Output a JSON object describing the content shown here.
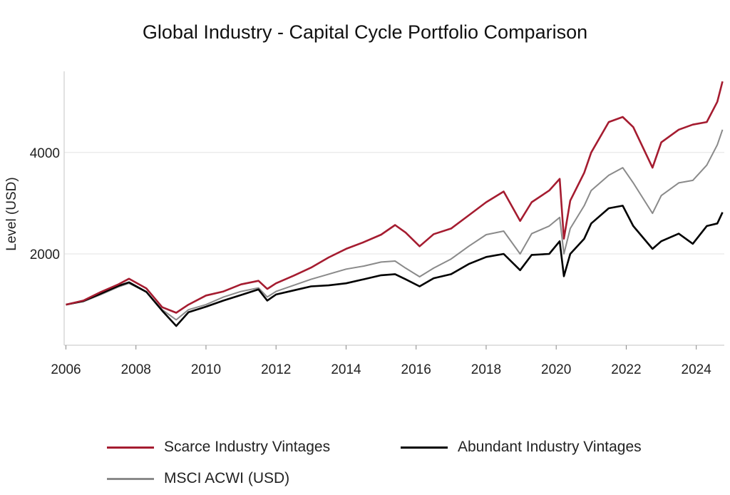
{
  "chart_data": {
    "type": "line",
    "title": "Global Industry - Capital Cycle Portfolio Comparison",
    "xlabel": "",
    "ylabel": "Level (USD)",
    "xlim": [
      2005.95,
      2024.8
    ],
    "ylim": [
      200,
      5600
    ],
    "x_ticks": [
      "2006",
      "2008",
      "2010",
      "2012",
      "2014",
      "2016",
      "2018",
      "2020",
      "2022",
      "2024"
    ],
    "y_ticks": [
      "2000",
      "4000"
    ],
    "grid": "horizontal",
    "legend_position": "bottom",
    "series": [
      {
        "name": "Scarce Industry Vintages",
        "color": "#a51c30",
        "x": [
          2006.0,
          2006.5,
          2007.0,
          2007.5,
          2007.8,
          2008.3,
          2008.75,
          2009.15,
          2009.5,
          2010.0,
          2010.5,
          2011.0,
          2011.5,
          2011.75,
          2012.0,
          2012.5,
          2013.0,
          2013.5,
          2014.0,
          2014.5,
          2015.0,
          2015.4,
          2015.7,
          2016.1,
          2016.5,
          2017.0,
          2017.5,
          2018.0,
          2018.5,
          2018.97,
          2019.3,
          2019.8,
          2020.1,
          2020.22,
          2020.4,
          2020.8,
          2021.0,
          2021.5,
          2021.9,
          2022.2,
          2022.75,
          2023.0,
          2023.5,
          2023.9,
          2024.3,
          2024.6,
          2024.75
        ],
        "y": [
          1000,
          1080,
          1250,
          1400,
          1510,
          1320,
          950,
          840,
          1000,
          1180,
          1260,
          1400,
          1470,
          1310,
          1420,
          1570,
          1730,
          1930,
          2100,
          2230,
          2380,
          2570,
          2420,
          2150,
          2390,
          2500,
          2760,
          3020,
          3230,
          2650,
          3020,
          3250,
          3480,
          2300,
          3050,
          3600,
          4000,
          4600,
          4700,
          4500,
          3700,
          4200,
          4450,
          4550,
          4600,
          5000,
          5400
        ]
      },
      {
        "name": "Abundant Industry Vintages",
        "color": "#000000",
        "x": [
          2006.0,
          2006.5,
          2007.0,
          2007.5,
          2007.8,
          2008.3,
          2008.75,
          2009.15,
          2009.5,
          2010.0,
          2010.5,
          2011.0,
          2011.5,
          2011.75,
          2012.0,
          2012.5,
          2013.0,
          2013.5,
          2014.0,
          2014.5,
          2015.0,
          2015.4,
          2015.7,
          2016.1,
          2016.5,
          2017.0,
          2017.5,
          2018.0,
          2018.5,
          2018.97,
          2019.3,
          2019.8,
          2020.1,
          2020.22,
          2020.4,
          2020.8,
          2021.0,
          2021.5,
          2021.9,
          2022.2,
          2022.75,
          2023.0,
          2023.5,
          2023.9,
          2024.3,
          2024.6,
          2024.75
        ],
        "y": [
          1000,
          1070,
          1220,
          1370,
          1440,
          1250,
          880,
          580,
          850,
          960,
          1080,
          1190,
          1300,
          1080,
          1200,
          1280,
          1360,
          1380,
          1420,
          1500,
          1580,
          1600,
          1500,
          1360,
          1520,
          1600,
          1800,
          1940,
          2000,
          1680,
          1980,
          2000,
          2250,
          1560,
          2000,
          2300,
          2600,
          2900,
          2950,
          2550,
          2100,
          2250,
          2400,
          2200,
          2550,
          2600,
          2820
        ]
      },
      {
        "name": "MSCI ACWI (USD)",
        "color": "#8a8a8a",
        "x": [
          2006.0,
          2006.5,
          2007.0,
          2007.5,
          2007.8,
          2008.3,
          2008.75,
          2009.15,
          2009.5,
          2010.0,
          2010.5,
          2011.0,
          2011.5,
          2011.75,
          2012.0,
          2012.5,
          2013.0,
          2013.5,
          2014.0,
          2014.5,
          2015.0,
          2015.4,
          2015.7,
          2016.1,
          2016.5,
          2017.0,
          2017.5,
          2018.0,
          2018.5,
          2018.97,
          2019.3,
          2019.8,
          2020.1,
          2020.22,
          2020.4,
          2020.8,
          2021.0,
          2021.5,
          2021.9,
          2022.2,
          2022.75,
          2023.0,
          2023.5,
          2023.9,
          2024.3,
          2024.6,
          2024.75
        ],
        "y": [
          1000,
          1060,
          1200,
          1350,
          1420,
          1250,
          900,
          700,
          900,
          1000,
          1150,
          1260,
          1330,
          1150,
          1260,
          1380,
          1500,
          1600,
          1700,
          1760,
          1840,
          1860,
          1720,
          1550,
          1720,
          1900,
          2150,
          2380,
          2450,
          2000,
          2400,
          2550,
          2720,
          2000,
          2500,
          2950,
          3250,
          3550,
          3700,
          3400,
          2800,
          3150,
          3400,
          3450,
          3750,
          4150,
          4450
        ]
      }
    ]
  }
}
